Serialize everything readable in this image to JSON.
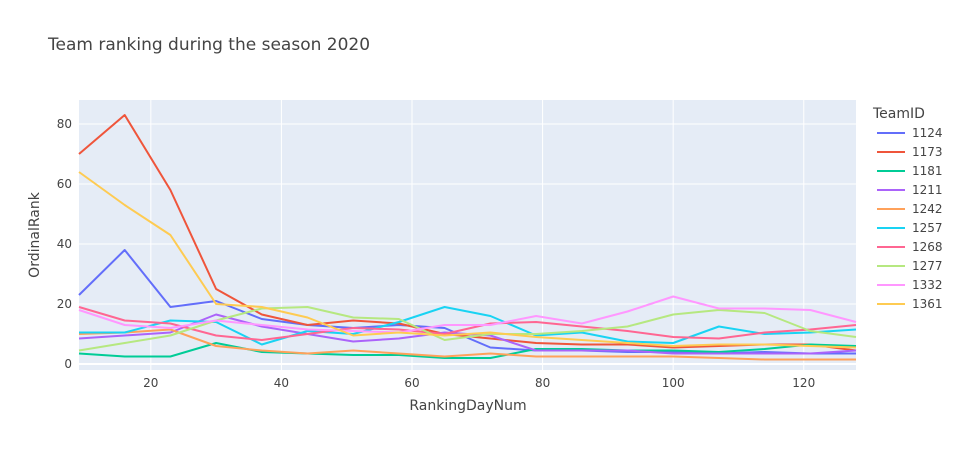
{
  "chart_data": {
    "type": "line",
    "title": "Team ranking during the season 2020",
    "xlabel": "RankingDayNum",
    "ylabel": "OrdinalRank",
    "xlim": [
      9,
      128
    ],
    "ylim": [
      -2,
      88
    ],
    "xticks": [
      20,
      40,
      60,
      80,
      100,
      120
    ],
    "yticks": [
      0,
      20,
      40,
      60,
      80
    ],
    "grid": true,
    "legend": {
      "title": "TeamID",
      "placement": "right"
    },
    "x": [
      9,
      16,
      23,
      30,
      37,
      44,
      51,
      58,
      65,
      72,
      79,
      86,
      93,
      100,
      107,
      114,
      121,
      128
    ],
    "series": [
      {
        "name": "1124",
        "color": "#636efa",
        "values": [
          23,
          38,
          19,
          21,
          15,
          13,
          12,
          13,
          12,
          5.5,
          4.5,
          4.5,
          4,
          4,
          3.5,
          4,
          3.5,
          3.5
        ]
      },
      {
        "name": "1173",
        "color": "#EF553B",
        "values": [
          70,
          83,
          58,
          25,
          16.5,
          13,
          14.5,
          13.5,
          10,
          8.5,
          7,
          6.5,
          6.5,
          5.5,
          6,
          6.5,
          6.5,
          4.5
        ]
      },
      {
        "name": "1181",
        "color": "#00cc96",
        "values": [
          3.5,
          2.5,
          2.5,
          7,
          4,
          3.5,
          3,
          3,
          2,
          2,
          5,
          5,
          4.5,
          4.5,
          4,
          5,
          6.5,
          6
        ]
      },
      {
        "name": "1211",
        "color": "#ab63fa",
        "values": [
          8.5,
          9.5,
          10.5,
          16.5,
          12.5,
          10,
          7.5,
          8.5,
          10.5,
          9.5,
          4.5,
          4.5,
          4.5,
          3.5,
          3.5,
          3.5,
          3.5,
          4.5
        ]
      },
      {
        "name": "1242",
        "color": "#FFA15A",
        "values": [
          10,
          10.5,
          11.5,
          6,
          4.5,
          3.5,
          4.5,
          3.5,
          2.5,
          3.5,
          2.5,
          2.5,
          2.5,
          2.5,
          2,
          1.5,
          1.5,
          1.5
        ]
      },
      {
        "name": "1257",
        "color": "#19d3f3",
        "values": [
          10.5,
          10.5,
          14.5,
          14,
          6.5,
          11,
          10,
          14,
          19,
          16,
          9.5,
          10.5,
          7.5,
          7,
          12.5,
          10,
          10.5,
          11.5
        ]
      },
      {
        "name": "1268",
        "color": "#FF6692",
        "values": [
          19,
          14.5,
          13.5,
          9.5,
          8,
          10,
          12,
          11.5,
          10,
          13.5,
          14,
          12.5,
          11,
          9,
          8.5,
          10.5,
          11.5,
          13
        ]
      },
      {
        "name": "1277",
        "color": "#B6E880",
        "values": [
          4.5,
          7,
          9.5,
          14.5,
          18.5,
          19,
          15.5,
          15,
          8,
          10,
          10,
          11,
          12.5,
          16.5,
          18,
          17,
          11,
          9
        ]
      },
      {
        "name": "1332",
        "color": "#FF97FF",
        "values": [
          18,
          13,
          12,
          14.5,
          13,
          11.5,
          11,
          10.5,
          13,
          13,
          16,
          13.5,
          17.5,
          22.5,
          18.5,
          18.5,
          18,
          14
        ]
      },
      {
        "name": "1361",
        "color": "#FECB52",
        "values": [
          64,
          53,
          43,
          20,
          19,
          15.5,
          9.5,
          10.5,
          9.5,
          10.5,
          9,
          8,
          7,
          6,
          6.5,
          6.5,
          6,
          5.5
        ]
      }
    ]
  }
}
